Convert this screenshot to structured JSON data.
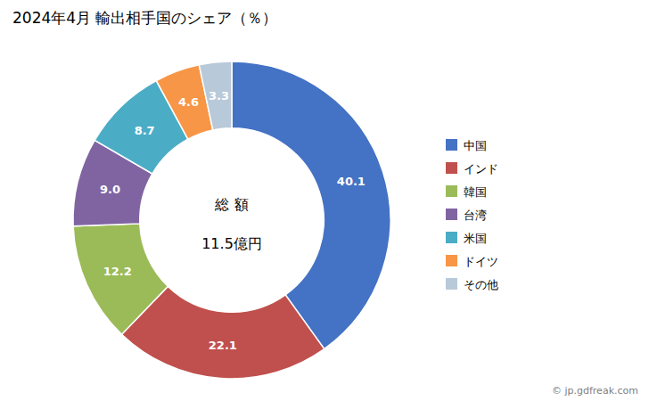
{
  "chart_data": {
    "type": "pie",
    "title": "2024年4月 輸出相手国のシェア（％）",
    "categories": [
      "中国",
      "インド",
      "韓国",
      "台湾",
      "米国",
      "ドイツ",
      "その他"
    ],
    "values": [
      40.1,
      22.1,
      12.2,
      9.0,
      8.7,
      4.6,
      3.3
    ],
    "value_labels": [
      "40.1",
      "22.1",
      "12.2",
      "9.0",
      "8.7",
      "4.6",
      "3.3"
    ],
    "colors": [
      "#4472C4",
      "#C0504D",
      "#9BBB59",
      "#8064A2",
      "#4BACC6",
      "#F79646",
      "#B8C9D9"
    ],
    "data_labels": true,
    "legend": "right",
    "annotations": [
      "総 額",
      "11.5億円",
      "© jp.gdfreak.com"
    ]
  }
}
